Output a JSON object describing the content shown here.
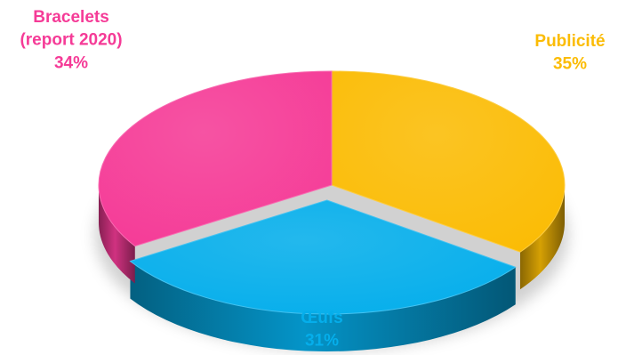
{
  "chart_data": {
    "type": "pie",
    "style": "3d",
    "slices": [
      {
        "label": "Publicité",
        "line1": "Publicité",
        "line2": "",
        "value": 35,
        "value_label": "35%",
        "color": "#FBBC05"
      },
      {
        "label": "Œufs",
        "line1": "Œufs",
        "line2": "",
        "value": 31,
        "value_label": "31%",
        "color": "#05AEEB"
      },
      {
        "label": "Bracelets (report 2020)",
        "line1": "Bracelets",
        "line2": "(report 2020)",
        "value": 34,
        "value_label": "34%",
        "color": "#F53B97"
      }
    ],
    "legend": "none"
  }
}
